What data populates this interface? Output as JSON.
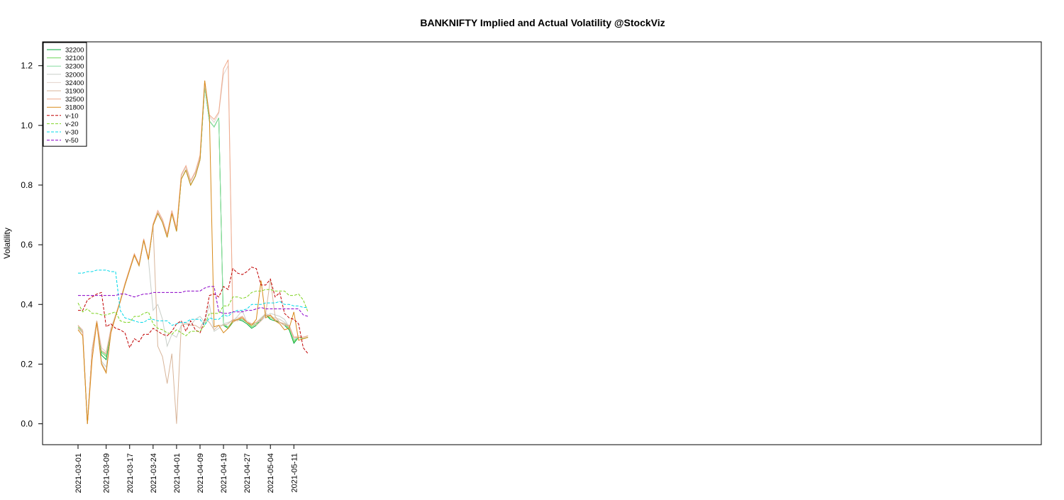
{
  "chart_data": {
    "type": "line",
    "title": "BANKNIFTY Implied and Actual Volatility @StockViz",
    "xlabel": "",
    "ylabel": "Volatility",
    "ylim": [
      -0.07,
      1.28
    ],
    "yticks": [
      "0.0",
      "0.2",
      "0.4",
      "0.6",
      "0.8",
      "1.0",
      "1.2"
    ],
    "ytick_values": [
      0,
      0.2,
      0.4,
      0.6,
      0.8,
      1.0,
      1.2
    ],
    "x": [
      "2021-03-01",
      "2021-03-02",
      "2021-03-03",
      "2021-03-04",
      "2021-03-05",
      "2021-03-08",
      "2021-03-09",
      "2021-03-10",
      "2021-03-12",
      "2021-03-15",
      "2021-03-16",
      "2021-03-17",
      "2021-03-18",
      "2021-03-19",
      "2021-03-22",
      "2021-03-23",
      "2021-03-24",
      "2021-03-25",
      "2021-03-26",
      "2021-03-30",
      "2021-03-31",
      "2021-04-01",
      "2021-04-05",
      "2021-04-06",
      "2021-04-07",
      "2021-04-08",
      "2021-04-09",
      "2021-04-12",
      "2021-04-13",
      "2021-04-15",
      "2021-04-16",
      "2021-04-19",
      "2021-04-20",
      "2021-04-22",
      "2021-04-23",
      "2021-04-26",
      "2021-04-27",
      "2021-04-28",
      "2021-04-29",
      "2021-04-30",
      "2021-05-03",
      "2021-05-04",
      "2021-05-05",
      "2021-05-06",
      "2021-05-07",
      "2021-05-10",
      "2021-05-11",
      "2021-05-12",
      "2021-05-14",
      "2021-05-17"
    ],
    "xtick_labels": [
      "2021-03-01",
      "2021-03-09",
      "2021-03-17",
      "2021-03-24",
      "2021-04-01",
      "2021-04-09",
      "2021-04-19",
      "2021-04-27",
      "2021-05-04",
      "2021-05-11"
    ],
    "xtick_indices": [
      0,
      6,
      11,
      16,
      21,
      26,
      31,
      36,
      41,
      46
    ],
    "legend": {
      "position": "top-left"
    },
    "grid": false,
    "series": [
      {
        "name": "32200",
        "color": "#00a83a",
        "dash": "solid",
        "values": [
          0.32,
          0.305,
          0.0,
          0.245,
          0.34,
          0.23,
          0.215,
          0.31,
          0.36,
          0.41,
          0.465,
          0.515,
          0.565,
          0.53,
          0.615,
          0.55,
          0.665,
          0.705,
          0.675,
          0.625,
          0.705,
          0.645,
          0.82,
          0.85,
          0.8,
          0.83,
          0.885,
          1.13,
          1.015,
          0.995,
          1.025,
          0.33,
          0.32,
          0.34,
          0.35,
          0.345,
          0.335,
          0.32,
          0.33,
          0.35,
          0.365,
          0.35,
          0.345,
          0.34,
          0.33,
          0.315,
          0.27,
          0.29,
          0.285,
          0.29
        ]
      },
      {
        "name": "32100",
        "color": "#6fd85c",
        "dash": "solid",
        "values": [
          0.325,
          0.31,
          0.0,
          0.25,
          0.345,
          0.24,
          0.225,
          0.315,
          0.36,
          0.41,
          0.465,
          0.515,
          0.565,
          0.53,
          0.615,
          0.55,
          0.665,
          0.705,
          0.675,
          0.625,
          0.705,
          0.645,
          0.82,
          0.85,
          0.8,
          0.83,
          0.885,
          1.13,
          1.015,
          0.995,
          1.025,
          0.33,
          0.325,
          0.34,
          0.35,
          0.35,
          0.34,
          0.325,
          0.335,
          0.355,
          0.365,
          0.355,
          0.35,
          0.34,
          0.335,
          0.32,
          0.275,
          0.29,
          0.285,
          0.29
        ]
      },
      {
        "name": "32300",
        "color": "#86dba0",
        "dash": "solid",
        "values": [
          0.33,
          0.31,
          0.0,
          0.25,
          0.345,
          0.245,
          0.23,
          0.32,
          0.365,
          0.41,
          0.47,
          0.515,
          0.565,
          0.53,
          0.615,
          0.55,
          0.665,
          0.705,
          0.675,
          0.625,
          0.705,
          0.645,
          0.82,
          0.85,
          0.8,
          0.83,
          0.885,
          1.13,
          1.015,
          0.995,
          1.025,
          0.335,
          0.325,
          0.345,
          0.35,
          0.35,
          0.34,
          0.33,
          0.34,
          0.355,
          0.37,
          0.36,
          0.355,
          0.35,
          0.34,
          0.325,
          0.28,
          0.29,
          0.29,
          0.295
        ]
      },
      {
        "name": "32000",
        "color": "#c9cfc9",
        "dash": "solid",
        "values": [
          0.32,
          0.305,
          0.0,
          0.245,
          0.34,
          0.21,
          0.19,
          0.305,
          0.36,
          0.41,
          0.465,
          0.515,
          0.565,
          0.53,
          0.615,
          0.55,
          0.38,
          0.4,
          0.35,
          0.26,
          0.3,
          0.29,
          0.33,
          0.34,
          0.33,
          0.35,
          0.36,
          0.34,
          0.4,
          0.31,
          0.32,
          0.335,
          0.34,
          0.345,
          0.36,
          0.38,
          0.34,
          0.335,
          0.34,
          0.345,
          0.36,
          0.37,
          0.365,
          0.36,
          0.35,
          0.325,
          0.285,
          0.29,
          0.29,
          0.295
        ]
      },
      {
        "name": "32400",
        "color": "#e2d2cc",
        "dash": "solid",
        "values": [
          0.33,
          0.315,
          0.0,
          0.25,
          0.345,
          0.255,
          0.24,
          0.32,
          0.365,
          0.415,
          0.47,
          0.52,
          0.57,
          0.535,
          0.62,
          0.555,
          0.67,
          0.71,
          0.68,
          0.63,
          0.71,
          0.65,
          0.83,
          0.86,
          0.81,
          0.84,
          0.895,
          1.14,
          1.03,
          1.01,
          1.04,
          1.17,
          1.2,
          0.345,
          0.355,
          0.36,
          0.345,
          0.335,
          0.34,
          0.355,
          0.37,
          0.36,
          0.355,
          0.35,
          0.34,
          0.33,
          0.29,
          0.295,
          0.29,
          0.295
        ]
      },
      {
        "name": "31900",
        "color": "#d8b59a",
        "dash": "solid",
        "values": [
          0.32,
          0.305,
          0.0,
          0.24,
          0.34,
          0.205,
          0.175,
          0.305,
          0.36,
          0.41,
          0.465,
          0.515,
          0.565,
          0.53,
          0.615,
          0.55,
          0.665,
          0.26,
          0.225,
          0.135,
          0.235,
          0.0,
          0.33,
          0.335,
          0.33,
          0.33,
          0.32,
          0.35,
          0.34,
          0.315,
          0.33,
          0.33,
          0.335,
          0.35,
          0.345,
          0.36,
          0.34,
          0.335,
          0.33,
          0.345,
          0.37,
          0.485,
          0.36,
          0.34,
          0.33,
          0.33,
          0.29,
          0.29,
          0.29,
          0.295
        ]
      },
      {
        "name": "32500",
        "color": "#f0aa8c",
        "dash": "solid",
        "values": [
          0.33,
          0.31,
          0.0,
          0.245,
          0.345,
          0.245,
          0.235,
          0.315,
          0.36,
          0.41,
          0.47,
          0.52,
          0.57,
          0.535,
          0.62,
          0.555,
          0.67,
          0.715,
          0.685,
          0.635,
          0.715,
          0.655,
          0.835,
          0.865,
          0.815,
          0.845,
          0.9,
          1.15,
          1.035,
          1.02,
          1.045,
          1.19,
          1.22,
          0.34,
          0.35,
          0.36,
          0.34,
          0.335,
          0.34,
          0.35,
          0.365,
          0.36,
          0.35,
          0.34,
          0.335,
          0.325,
          0.29,
          0.29,
          0.29,
          0.295
        ]
      },
      {
        "name": "31800",
        "color": "#d88a1a",
        "dash": "solid",
        "values": [
          0.315,
          0.295,
          0.0,
          0.215,
          0.34,
          0.2,
          0.17,
          0.305,
          0.36,
          0.41,
          0.465,
          0.515,
          0.565,
          0.53,
          0.615,
          0.55,
          0.665,
          0.705,
          0.675,
          0.625,
          0.705,
          0.645,
          0.82,
          0.85,
          0.8,
          0.83,
          0.885,
          1.15,
          1.03,
          0.325,
          0.33,
          0.305,
          0.32,
          0.345,
          0.35,
          0.355,
          0.34,
          0.33,
          0.35,
          0.48,
          0.355,
          0.365,
          0.345,
          0.335,
          0.315,
          0.32,
          0.375,
          0.28,
          0.285,
          0.29
        ]
      },
      {
        "name": "v-10",
        "color": "#c00000",
        "dash": "dash",
        "values": [
          0.38,
          0.38,
          0.415,
          0.425,
          0.435,
          0.44,
          0.325,
          0.335,
          0.32,
          0.315,
          0.305,
          0.255,
          0.285,
          0.275,
          0.3,
          0.3,
          0.32,
          0.31,
          0.3,
          0.295,
          0.31,
          0.335,
          0.345,
          0.31,
          0.345,
          0.315,
          0.305,
          0.345,
          0.43,
          0.435,
          0.425,
          0.46,
          0.45,
          0.52,
          0.505,
          0.5,
          0.51,
          0.525,
          0.52,
          0.465,
          0.465,
          0.485,
          0.425,
          0.44,
          0.37,
          0.355,
          0.35,
          0.335,
          0.255,
          0.235
        ]
      },
      {
        "name": "v-20",
        "color": "#7ed321",
        "dash": "dash",
        "values": [
          0.405,
          0.375,
          0.385,
          0.37,
          0.37,
          0.365,
          0.365,
          0.37,
          0.375,
          0.345,
          0.34,
          0.34,
          0.36,
          0.36,
          0.37,
          0.375,
          0.335,
          0.32,
          0.315,
          0.305,
          0.3,
          0.315,
          0.305,
          0.295,
          0.31,
          0.31,
          0.31,
          0.33,
          0.37,
          0.37,
          0.37,
          0.395,
          0.395,
          0.425,
          0.425,
          0.42,
          0.425,
          0.44,
          0.445,
          0.445,
          0.45,
          0.45,
          0.445,
          0.445,
          0.445,
          0.43,
          0.43,
          0.435,
          0.415,
          0.375
        ]
      },
      {
        "name": "v-30",
        "color": "#00d8e8",
        "dash": "dash",
        "values": [
          0.505,
          0.505,
          0.51,
          0.51,
          0.515,
          0.515,
          0.515,
          0.51,
          0.51,
          0.38,
          0.355,
          0.35,
          0.345,
          0.34,
          0.34,
          0.35,
          0.35,
          0.345,
          0.345,
          0.345,
          0.33,
          0.335,
          0.34,
          0.34,
          0.35,
          0.35,
          0.35,
          0.33,
          0.355,
          0.35,
          0.35,
          0.365,
          0.36,
          0.375,
          0.38,
          0.38,
          0.385,
          0.4,
          0.4,
          0.4,
          0.405,
          0.405,
          0.405,
          0.41,
          0.4,
          0.4,
          0.395,
          0.395,
          0.39,
          0.39
        ]
      },
      {
        "name": "v-50",
        "color": "#8a00c8",
        "dash": "dash",
        "values": [
          0.43,
          0.43,
          0.43,
          0.43,
          0.43,
          0.43,
          0.43,
          0.43,
          0.43,
          0.435,
          0.435,
          0.43,
          0.425,
          0.43,
          0.435,
          0.435,
          0.44,
          0.44,
          0.44,
          0.44,
          0.44,
          0.44,
          0.44,
          0.445,
          0.445,
          0.445,
          0.445,
          0.455,
          0.46,
          0.46,
          0.375,
          0.37,
          0.37,
          0.375,
          0.375,
          0.375,
          0.38,
          0.38,
          0.385,
          0.39,
          0.385,
          0.385,
          0.385,
          0.385,
          0.385,
          0.385,
          0.385,
          0.385,
          0.365,
          0.36
        ]
      }
    ]
  }
}
